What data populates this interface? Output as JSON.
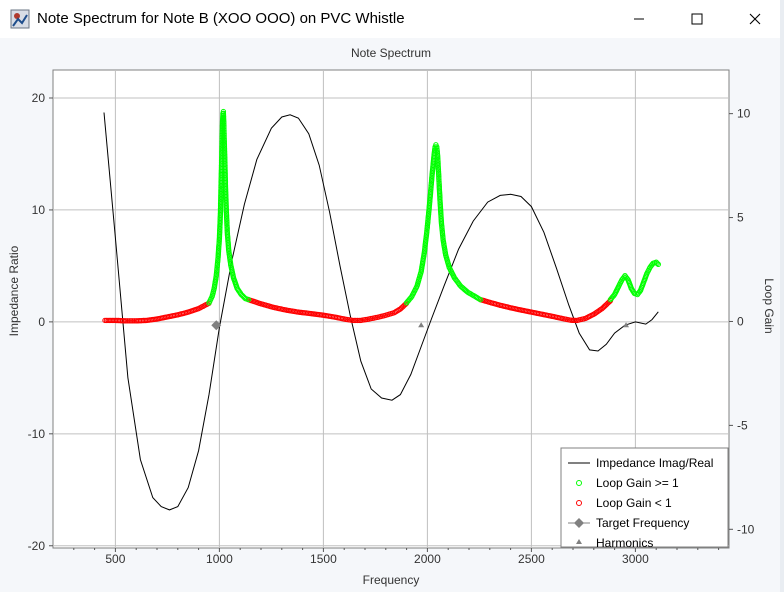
{
  "window": {
    "title": "Note Spectrum for Note B (XOO OOO) on PVC Whistle",
    "minimize_icon": "minimize-icon",
    "maximize_icon": "maximize-icon",
    "close_icon": "close-icon",
    "app_icon": "app-icon"
  },
  "colors": {
    "loop_gain_high": "#00ff00",
    "loop_gain_low": "#ff0000",
    "impedance_line": "#000000",
    "target_marker": "#808080",
    "harmonics_marker": "#808080",
    "grid": "#c0c0c0"
  },
  "chart_data": {
    "type": "line",
    "title": "Note Spectrum",
    "xlabel": "Frequency",
    "ylabel": "Impedance Ratio",
    "y2label": "Loop Gain",
    "xlim": [
      200,
      3450
    ],
    "ylim": [
      -20.2,
      22.5
    ],
    "y2lim": [
      -10.9,
      12.1
    ],
    "xticks": [
      500,
      1000,
      1500,
      2000,
      2500,
      3000
    ],
    "yticks": [
      -20,
      -10,
      0,
      10,
      20
    ],
    "y2ticks": [
      -10,
      -5,
      0,
      5,
      10
    ],
    "grid": true,
    "legend_position": "bottom-right",
    "legend": [
      "Impedance Imag/Real",
      "Loop Gain >= 1",
      "Loop Gain < 1",
      "Target Frequency",
      "Harmonics"
    ],
    "series": [
      {
        "name": "Impedance Imag/Real",
        "style": "line",
        "points": [
          [
            445,
            18.7
          ],
          [
            500,
            7.5
          ],
          [
            560,
            -5.0
          ],
          [
            620,
            -12.3
          ],
          [
            680,
            -15.7
          ],
          [
            720,
            -16.5
          ],
          [
            760,
            -16.8
          ],
          [
            800,
            -16.5
          ],
          [
            850,
            -14.8
          ],
          [
            900,
            -11.5
          ],
          [
            950,
            -6.5
          ],
          [
            1000,
            -0.5
          ],
          [
            1060,
            5.5
          ],
          [
            1120,
            10.5
          ],
          [
            1180,
            14.5
          ],
          [
            1250,
            17.3
          ],
          [
            1300,
            18.3
          ],
          [
            1340,
            18.5
          ],
          [
            1380,
            18.2
          ],
          [
            1430,
            16.8
          ],
          [
            1480,
            14.0
          ],
          [
            1530,
            9.8
          ],
          [
            1580,
            5.0
          ],
          [
            1630,
            0.5
          ],
          [
            1680,
            -3.5
          ],
          [
            1730,
            -6.0
          ],
          [
            1780,
            -6.8
          ],
          [
            1830,
            -7.0
          ],
          [
            1870,
            -6.5
          ],
          [
            1920,
            -4.7
          ],
          [
            1970,
            -2.2
          ],
          [
            2020,
            0.3
          ],
          [
            2080,
            3.2
          ],
          [
            2150,
            6.5
          ],
          [
            2220,
            9.0
          ],
          [
            2290,
            10.7
          ],
          [
            2350,
            11.3
          ],
          [
            2400,
            11.4
          ],
          [
            2450,
            11.2
          ],
          [
            2500,
            10.3
          ],
          [
            2560,
            8.0
          ],
          [
            2620,
            4.8
          ],
          [
            2680,
            1.5
          ],
          [
            2730,
            -1.0
          ],
          [
            2780,
            -2.5
          ],
          [
            2820,
            -2.6
          ],
          [
            2860,
            -2.0
          ],
          [
            2900,
            -1.0
          ],
          [
            2950,
            -0.3
          ],
          [
            3000,
            0.0
          ],
          [
            3050,
            -0.2
          ],
          [
            3080,
            0.2
          ],
          [
            3110,
            0.9
          ]
        ]
      },
      {
        "name": "Loop Gain >= 1",
        "style": "circles",
        "axis": "right",
        "segments": [
          [
            [
              950,
              0.9
            ],
            [
              965,
              1.2
            ],
            [
              975,
              1.6
            ],
            [
              985,
              2.2
            ],
            [
              993,
              3.0
            ],
            [
              1000,
              4.0
            ],
            [
              1005,
              5.2
            ],
            [
              1008,
              6.6
            ],
            [
              1011,
              7.8
            ],
            [
              1013,
              8.8
            ],
            [
              1015,
              9.6
            ],
            [
              1017,
              10.0
            ],
            [
              1019,
              10.1
            ],
            [
              1021,
              9.6
            ],
            [
              1023,
              8.8
            ],
            [
              1026,
              7.8
            ],
            [
              1029,
              6.6
            ],
            [
              1033,
              5.4
            ],
            [
              1038,
              4.3
            ],
            [
              1045,
              3.4
            ],
            [
              1055,
              2.7
            ],
            [
              1068,
              2.1
            ],
            [
              1085,
              1.6
            ],
            [
              1105,
              1.3
            ],
            [
              1125,
              1.1
            ],
            [
              1140,
              1.05
            ]
          ],
          [
            [
              1900,
              0.9
            ],
            [
              1925,
              1.2
            ],
            [
              1950,
              1.7
            ],
            [
              1970,
              2.4
            ],
            [
              1985,
              3.3
            ],
            [
              1997,
              4.3
            ],
            [
              2008,
              5.4
            ],
            [
              2016,
              6.3
            ],
            [
              2022,
              7.0
            ],
            [
              2028,
              7.6
            ],
            [
              2033,
              8.1
            ],
            [
              2037,
              8.4
            ],
            [
              2041,
              8.5
            ],
            [
              2045,
              8.4
            ],
            [
              2049,
              8.0
            ],
            [
              2053,
              7.3
            ],
            [
              2057,
              6.5
            ],
            [
              2062,
              5.6
            ],
            [
              2068,
              4.7
            ],
            [
              2076,
              3.9
            ],
            [
              2088,
              3.2
            ],
            [
              2105,
              2.6
            ],
            [
              2130,
              2.1
            ],
            [
              2160,
              1.7
            ],
            [
              2195,
              1.4
            ],
            [
              2230,
              1.2
            ],
            [
              2255,
              1.05
            ]
          ],
          [
            [
              2880,
              1.05
            ],
            [
              2900,
              1.3
            ],
            [
              2920,
              1.7
            ],
            [
              2935,
              2.0
            ],
            [
              2950,
              2.2
            ],
            [
              2965,
              2.0
            ],
            [
              2980,
              1.6
            ],
            [
              2995,
              1.35
            ],
            [
              3010,
              1.3
            ],
            [
              3025,
              1.5
            ],
            [
              3040,
              1.9
            ],
            [
              3055,
              2.3
            ],
            [
              3070,
              2.6
            ],
            [
              3085,
              2.8
            ],
            [
              3100,
              2.85
            ],
            [
              3110,
              2.75
            ]
          ]
        ]
      },
      {
        "name": "Loop Gain < 1",
        "style": "circles",
        "axis": "right",
        "segments": [
          [
            [
              450,
              0.05
            ],
            [
              500,
              0.05
            ],
            [
              550,
              0.03
            ],
            [
              600,
              0.03
            ],
            [
              650,
              0.05
            ],
            [
              700,
              0.12
            ],
            [
              750,
              0.22
            ],
            [
              800,
              0.32
            ],
            [
              850,
              0.45
            ],
            [
              900,
              0.62
            ],
            [
              950,
              0.88
            ]
          ],
          [
            [
              1140,
              1.05
            ],
            [
              1200,
              0.85
            ],
            [
              1260,
              0.68
            ],
            [
              1320,
              0.55
            ],
            [
              1380,
              0.45
            ],
            [
              1440,
              0.38
            ],
            [
              1500,
              0.3
            ],
            [
              1550,
              0.22
            ],
            [
              1600,
              0.12
            ],
            [
              1640,
              0.05
            ],
            [
              1680,
              0.05
            ],
            [
              1720,
              0.12
            ],
            [
              1760,
              0.2
            ],
            [
              1800,
              0.3
            ],
            [
              1840,
              0.42
            ],
            [
              1870,
              0.6
            ],
            [
              1900,
              0.88
            ]
          ],
          [
            [
              2255,
              1.05
            ],
            [
              2300,
              0.92
            ],
            [
              2350,
              0.78
            ],
            [
              2400,
              0.66
            ],
            [
              2450,
              0.55
            ],
            [
              2500,
              0.45
            ],
            [
              2550,
              0.35
            ],
            [
              2600,
              0.25
            ],
            [
              2650,
              0.14
            ],
            [
              2690,
              0.06
            ],
            [
              2720,
              0.05
            ],
            [
              2760,
              0.15
            ],
            [
              2800,
              0.35
            ],
            [
              2840,
              0.62
            ],
            [
              2880,
              1.0
            ]
          ]
        ]
      },
      {
        "name": "Target Frequency",
        "style": "diamond",
        "points": [
          [
            985,
            -0.3
          ]
        ]
      },
      {
        "name": "Harmonics",
        "style": "triangle",
        "points": [
          [
            1970,
            -0.3
          ],
          [
            2955,
            -0.3
          ]
        ]
      }
    ]
  }
}
